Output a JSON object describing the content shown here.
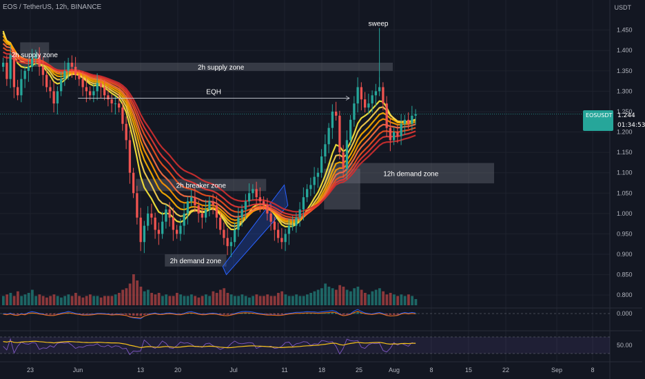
{
  "header": {
    "title": "EOS / TetherUS, 12h, BINANCE",
    "currency": "USDT"
  },
  "price_tag": {
    "symbol": "EOSUSDT",
    "last": "1.244",
    "countdown": "01:34:53"
  },
  "colors": {
    "up": "#26a69a",
    "down": "#ef5350",
    "background": "#131722",
    "ribbon": [
      "#ffeb3b",
      "#ffd54f",
      "#ffb300",
      "#ff9800",
      "#ff7043",
      "#f4511e",
      "#e53935",
      "#d32f2f"
    ]
  },
  "chart_data": {
    "type": "candlestick",
    "title": "EOS / TetherUS, 12h, BINANCE",
    "x_tick_labels": [
      "23",
      "Jun",
      "13",
      "20",
      "Jul",
      "11",
      "18",
      "25",
      "Aug",
      "8",
      "15",
      "22",
      "Sep",
      "8"
    ],
    "y_tick_labels": [
      "1.450",
      "1.400",
      "1.350",
      "1.300",
      "1.250",
      "1.200",
      "1.150",
      "1.100",
      "1.050",
      "1.000",
      "0.950",
      "0.900",
      "0.850",
      "0.800"
    ],
    "y_range": [
      0.78,
      1.49
    ],
    "last_price": 1.244,
    "closes": [
      1.37,
      1.33,
      1.39,
      1.31,
      1.29,
      1.33,
      1.35,
      1.36,
      1.38,
      1.39,
      1.36,
      1.34,
      1.31,
      1.3,
      1.27,
      1.3,
      1.33,
      1.35,
      1.37,
      1.36,
      1.34,
      1.33,
      1.31,
      1.3,
      1.29,
      1.3,
      1.32,
      1.31,
      1.29,
      1.28,
      1.27,
      1.27,
      1.26,
      1.22,
      1.18,
      1.1,
      1.05,
      0.99,
      0.93,
      0.97,
      1.0,
      0.99,
      0.96,
      0.95,
      0.98,
      1.01,
      0.99,
      0.96,
      0.95,
      0.97,
      1.0,
      1.03,
      1.04,
      1.02,
      1.0,
      0.99,
      1.01,
      1.03,
      1.02,
      0.99,
      0.96,
      0.94,
      0.92,
      0.93,
      0.96,
      0.99,
      1.01,
      1.03,
      1.05,
      1.06,
      1.04,
      1.03,
      1.02,
      1.0,
      0.98,
      0.96,
      0.94,
      0.93,
      0.95,
      0.97,
      0.97,
      0.99,
      1.01,
      1.04,
      1.06,
      1.07,
      1.09,
      1.1,
      1.14,
      1.17,
      1.21,
      1.25,
      1.24,
      1.15,
      1.11,
      1.18,
      1.23,
      1.27,
      1.31,
      1.28,
      1.26,
      1.27,
      1.29,
      1.3,
      1.31,
      1.27,
      1.21,
      1.18,
      1.2,
      1.19,
      1.22,
      1.23,
      1.22,
      1.24,
      1.244
    ],
    "volume_relative": [
      0.3,
      0.35,
      0.4,
      0.3,
      0.45,
      0.3,
      0.35,
      0.4,
      0.5,
      0.3,
      0.35,
      0.3,
      0.25,
      0.3,
      0.35,
      0.3,
      0.25,
      0.3,
      0.35,
      0.3,
      0.4,
      0.3,
      0.25,
      0.3,
      0.35,
      0.3,
      0.3,
      0.25,
      0.3,
      0.3,
      0.3,
      0.35,
      0.4,
      0.5,
      0.55,
      0.7,
      1.0,
      0.8,
      0.6,
      0.45,
      0.5,
      0.4,
      0.35,
      0.4,
      0.3,
      0.35,
      0.3,
      0.3,
      0.4,
      0.35,
      0.3,
      0.3,
      0.35,
      0.3,
      0.25,
      0.3,
      0.35,
      0.3,
      0.45,
      0.4,
      0.5,
      0.55,
      0.4,
      0.35,
      0.3,
      0.3,
      0.35,
      0.3,
      0.25,
      0.3,
      0.35,
      0.3,
      0.3,
      0.35,
      0.3,
      0.3,
      0.4,
      0.45,
      0.35,
      0.3,
      0.3,
      0.35,
      0.3,
      0.3,
      0.35,
      0.4,
      0.45,
      0.5,
      0.55,
      0.7,
      0.6,
      0.55,
      0.5,
      0.65,
      0.6,
      0.5,
      0.45,
      0.55,
      0.6,
      0.5,
      0.4,
      0.35,
      0.45,
      0.5,
      0.55,
      0.45,
      0.35,
      0.4,
      0.35,
      0.3,
      0.35,
      0.3,
      0.35,
      0.3,
      0.2
    ],
    "annotations": [
      {
        "label": "2h supply zone",
        "kind": "zone",
        "price_top": 1.42,
        "price_bottom": 1.36,
        "from_bar": 5,
        "to_bar": 13
      },
      {
        "label": "2h supply zone",
        "kind": "zone",
        "price_top": 1.37,
        "price_bottom": 1.35,
        "from_bar": 13,
        "to_bar": 108
      },
      {
        "label": "EQH",
        "kind": "level",
        "price": 1.283,
        "from_bar": 21,
        "to_bar": 96
      },
      {
        "label": "sweep",
        "kind": "text",
        "price": 1.46,
        "bar": 104
      },
      {
        "label": "2h breaker zone",
        "kind": "zone",
        "price_top": 1.085,
        "price_bottom": 1.055,
        "from_bar": 37,
        "to_bar": 73
      },
      {
        "label": "2h demand zone",
        "kind": "zone",
        "price_top": 0.9,
        "price_bottom": 0.87,
        "from_bar": 45,
        "to_bar": 62
      },
      {
        "label": "12h demand zone",
        "kind": "zone",
        "price_top": 1.124,
        "price_bottom": 1.074,
        "from_bar": 90,
        "to_bar": 136
      },
      {
        "label": "",
        "kind": "zone",
        "price_top": 1.11,
        "price_bottom": 1.01,
        "from_bar": 89,
        "to_bar": 99
      }
    ],
    "oscillator_1": {
      "zero_label": "0.000"
    },
    "oscillator_2": {
      "level_label": "50.00"
    }
  }
}
